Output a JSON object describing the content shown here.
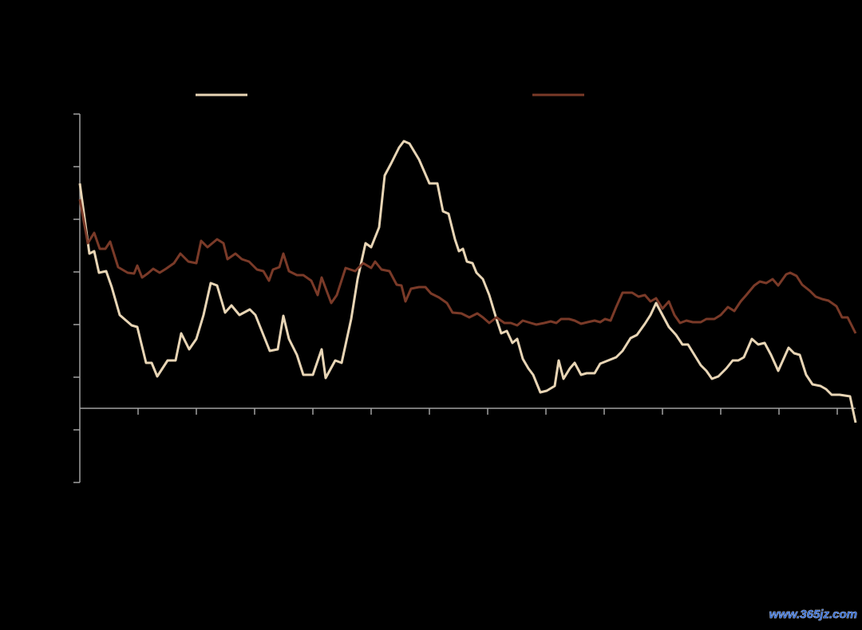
{
  "chart_data": {
    "type": "line",
    "xlim": [
      0,
      972
    ],
    "ylim": [
      0,
      462
    ],
    "xticks": [
      73,
      146,
      219,
      292,
      365,
      438,
      511,
      584,
      657,
      730,
      803,
      876,
      949
    ],
    "yticks": [
      0,
      66,
      132,
      198,
      264,
      330,
      396,
      462
    ],
    "x_axis_at": 93,
    "series": [
      {
        "color": "#e8d5b5",
        "x": [
          0,
          12,
          18,
          24,
          33,
          40,
          50,
          65,
          72,
          83,
          90,
          97,
          110,
          120,
          127,
          137,
          146,
          155,
          164,
          172,
          182,
          190,
          200,
          213,
          220,
          230,
          238,
          248,
          255,
          262,
          272,
          280,
          292,
          303,
          308,
          320,
          328,
          340,
          348,
          358,
          365,
          375,
          382,
          390,
          400,
          406,
          413,
          425,
          438,
          448,
          455,
          462,
          470,
          475,
          480,
          485,
          492,
          497,
          505,
          513,
          522,
          528,
          535,
          542,
          548,
          555,
          562,
          568,
          577,
          585,
          595,
          600,
          606,
          614,
          620,
          628,
          635,
          645,
          652,
          662,
          672,
          680,
          690,
          698,
          708,
          715,
          722,
          730,
          738,
          747,
          755,
          762,
          770,
          778,
          785,
          792,
          800,
          810,
          818,
          825,
          832,
          842,
          850,
          858,
          866,
          875,
          888,
          895,
          902,
          910,
          918,
          928,
          935,
          942,
          952,
          965,
          972
        ],
        "values": [
          375,
          287,
          290,
          263,
          265,
          245,
          210,
          197,
          195,
          150,
          150,
          133,
          153,
          153,
          187,
          167,
          180,
          210,
          250,
          247,
          213,
          222,
          210,
          217,
          210,
          185,
          165,
          167,
          209,
          180,
          160,
          135,
          135,
          167,
          131,
          153,
          150,
          205,
          255,
          300,
          295,
          320,
          385,
          400,
          420,
          428,
          425,
          405,
          375,
          375,
          340,
          337,
          305,
          290,
          293,
          277,
          275,
          263,
          255,
          235,
          205,
          187,
          190,
          175,
          180,
          155,
          143,
          135,
          113,
          115,
          121,
          153,
          130,
          143,
          150,
          135,
          137,
          137,
          149,
          153,
          157,
          165,
          181,
          185,
          199,
          210,
          225,
          210,
          195,
          185,
          173,
          173,
          160,
          147,
          140,
          130,
          133,
          143,
          153,
          153,
          157,
          180,
          173,
          175,
          160,
          140,
          169,
          162,
          160,
          135,
          123,
          121,
          117,
          110,
          110,
          108,
          75
        ]
      },
      {
        "color": "#7a3a28",
        "x": [
          0,
          10,
          18,
          25,
          32,
          38,
          48,
          60,
          68,
          72,
          78,
          85,
          92,
          100,
          108,
          118,
          126,
          136,
          146,
          152,
          160,
          172,
          180,
          185,
          195,
          203,
          212,
          222,
          230,
          237,
          242,
          250,
          255,
          262,
          272,
          280,
          290,
          298,
          303,
          315,
          322,
          333,
          345,
          355,
          365,
          370,
          378,
          388,
          397,
          403,
          408,
          415,
          425,
          433,
          440,
          450,
          460,
          467,
          478,
          488,
          498,
          505,
          513,
          522,
          532,
          540,
          548,
          555,
          565,
          572,
          582,
          590,
          597,
          603,
          613,
          620,
          628,
          636,
          645,
          652,
          658,
          665,
          672,
          680,
          692,
          700,
          708,
          715,
          722,
          730,
          738,
          745,
          752,
          760,
          768,
          778,
          785,
          795,
          803,
          812,
          820,
          828,
          835,
          845,
          852,
          860,
          868,
          875,
          885,
          890,
          898,
          905,
          915,
          922,
          930,
          938,
          948,
          955,
          962,
          972
        ],
        "values": [
          355,
          300,
          313,
          293,
          293,
          302,
          270,
          263,
          262,
          272,
          257,
          262,
          268,
          263,
          268,
          275,
          287,
          277,
          275,
          303,
          295,
          305,
          300,
          280,
          287,
          280,
          277,
          267,
          265,
          253,
          267,
          270,
          287,
          265,
          260,
          260,
          253,
          235,
          257,
          225,
          235,
          269,
          265,
          275,
          269,
          277,
          267,
          265,
          248,
          247,
          227,
          243,
          245,
          245,
          237,
          232,
          225,
          213,
          212,
          207,
          212,
          207,
          200,
          207,
          200,
          200,
          197,
          203,
          200,
          198,
          200,
          202,
          200,
          205,
          205,
          203,
          199,
          201,
          203,
          201,
          205,
          203,
          220,
          238,
          238,
          233,
          235,
          227,
          231,
          218,
          227,
          210,
          200,
          203,
          201,
          201,
          205,
          205,
          210,
          220,
          215,
          227,
          235,
          247,
          252,
          250,
          255,
          247,
          261,
          263,
          259,
          248,
          240,
          233,
          230,
          228,
          221,
          207,
          207,
          187
        ]
      }
    ]
  },
  "watermark": "www.365jz.com"
}
